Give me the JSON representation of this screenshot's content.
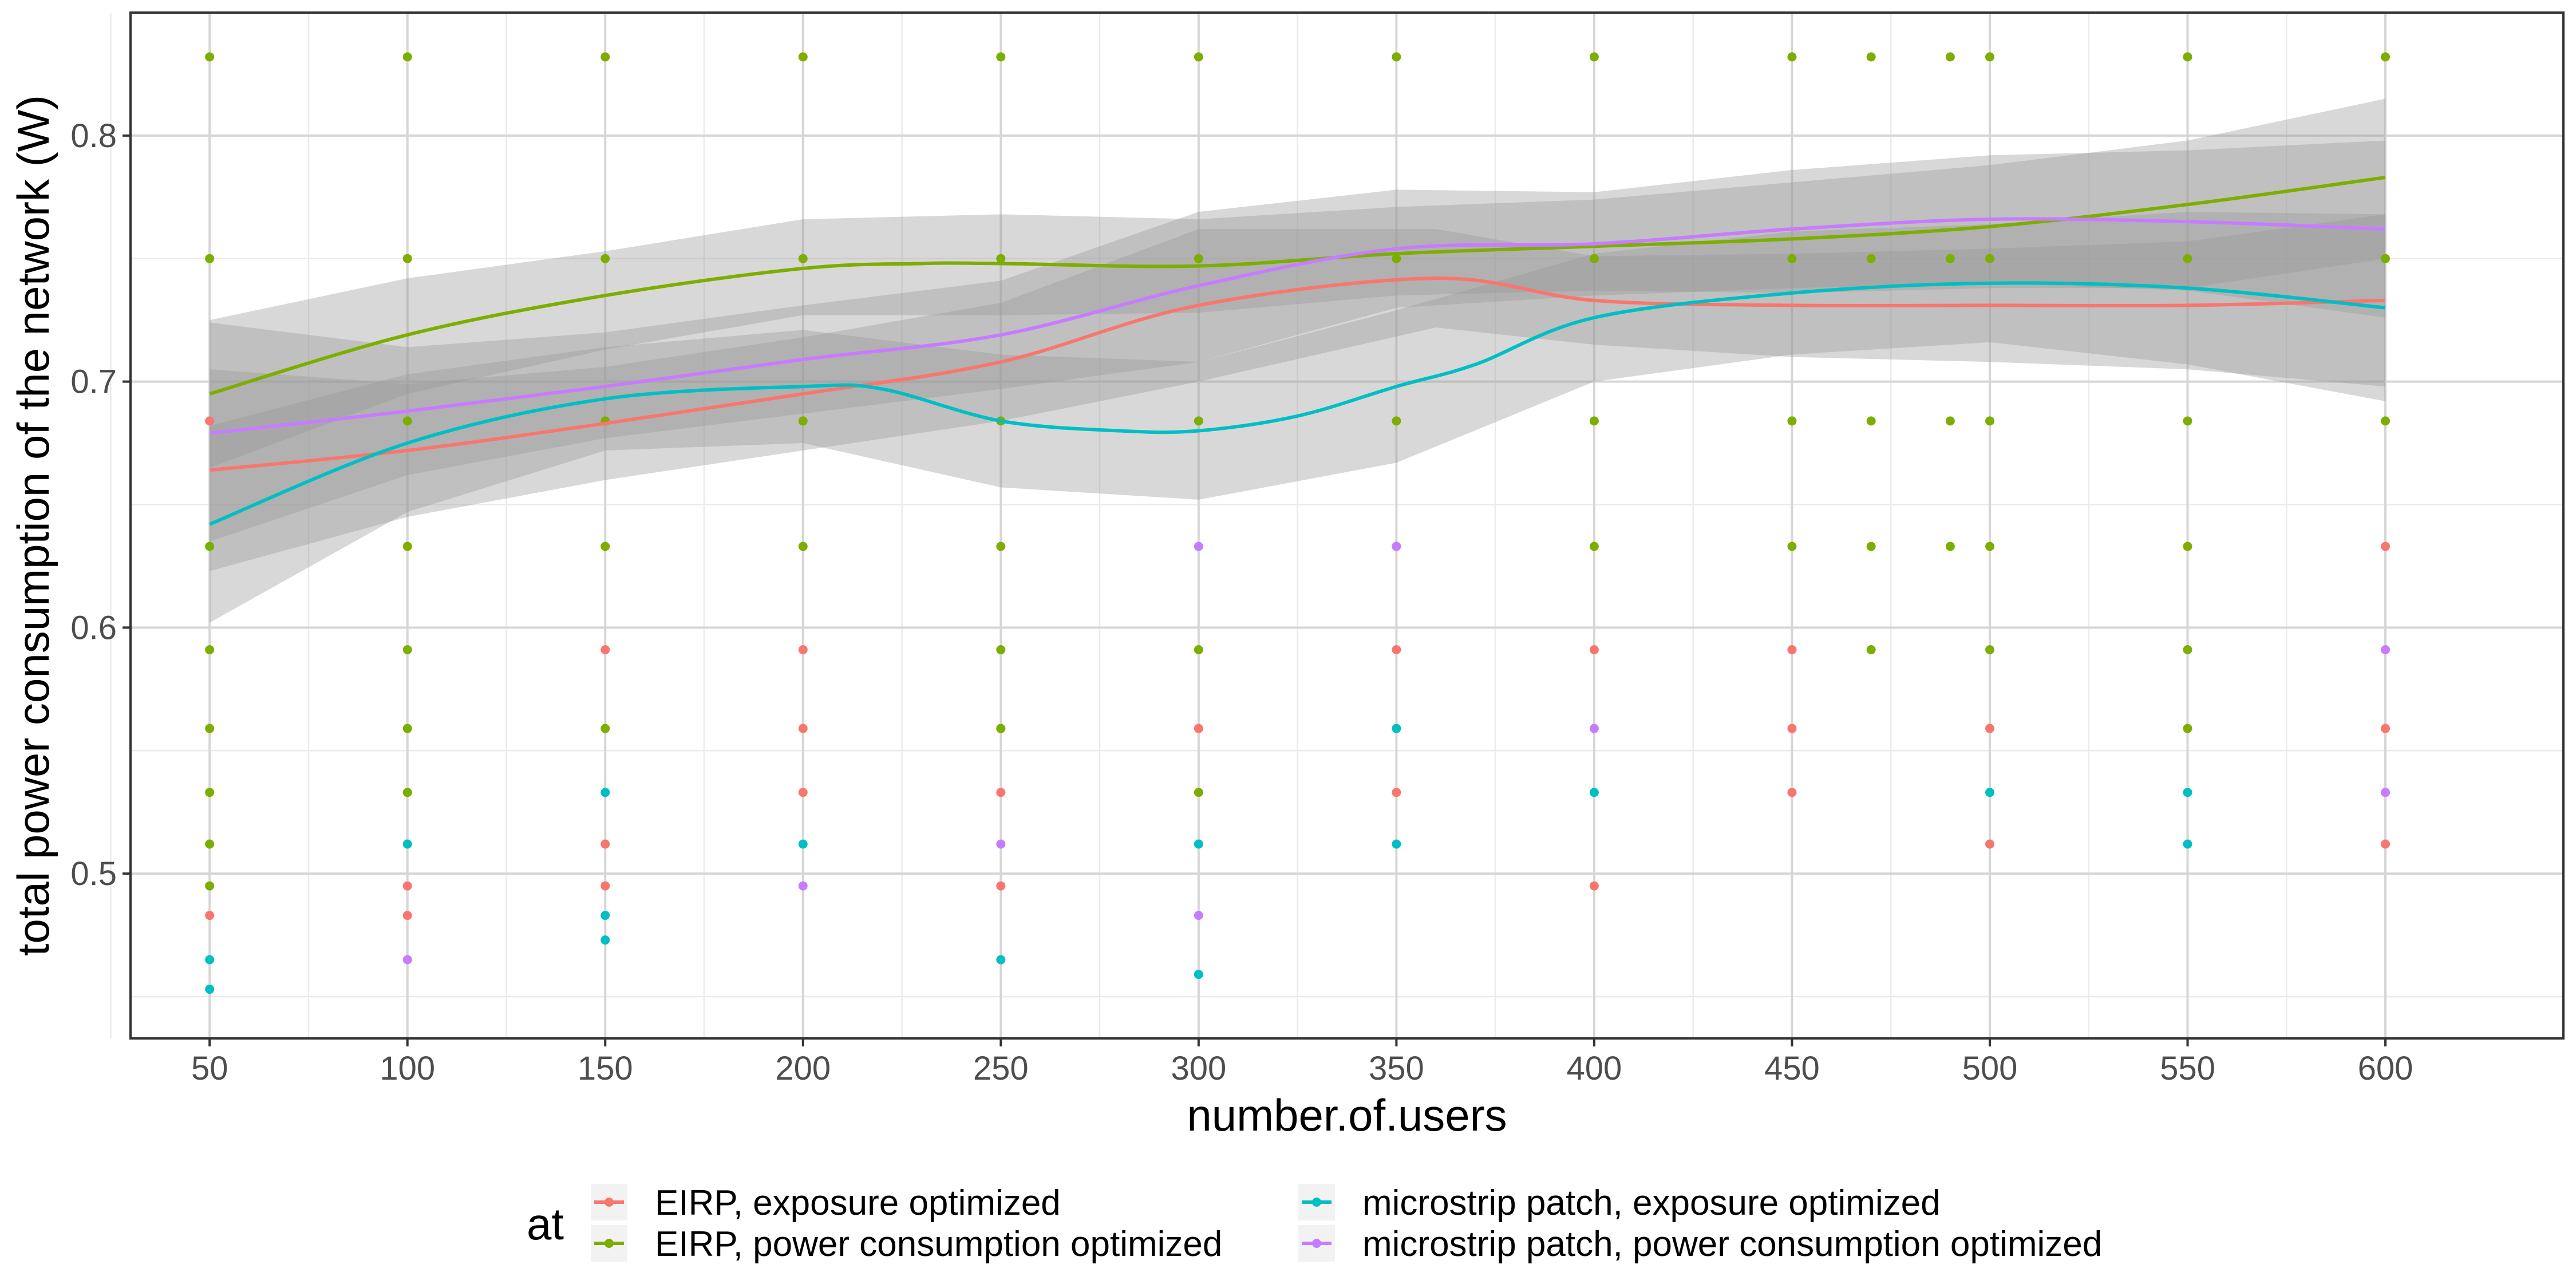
{
  "chart_data": {
    "type": "scatter",
    "xlabel": "number.of.users",
    "ylabel": "total power consumption of the network (W)",
    "xlim": [
      30,
      645
    ],
    "ylim": [
      0.433,
      0.85
    ],
    "x_ticks": [
      50,
      100,
      150,
      200,
      250,
      300,
      350,
      400,
      450,
      500,
      550,
      600
    ],
    "y_ticks": [
      0.5,
      0.6,
      0.7,
      0.8
    ],
    "grid": true,
    "legend_title": "at",
    "legend_position": "bottom",
    "series": [
      {
        "name": "EIRP, exposure optimized",
        "color": "#F8766D",
        "points": [
          [
            50,
            0.684
          ],
          [
            50,
            0.483
          ],
          [
            100,
            0.533
          ],
          [
            100,
            0.495
          ],
          [
            100,
            0.483
          ],
          [
            150,
            0.591
          ],
          [
            150,
            0.512
          ],
          [
            150,
            0.495
          ],
          [
            200,
            0.591
          ],
          [
            200,
            0.559
          ],
          [
            200,
            0.533
          ],
          [
            250,
            0.559
          ],
          [
            250,
            0.533
          ],
          [
            250,
            0.495
          ],
          [
            300,
            0.559
          ],
          [
            350,
            0.591
          ],
          [
            350,
            0.533
          ],
          [
            400,
            0.591
          ],
          [
            400,
            0.495
          ],
          [
            450,
            0.591
          ],
          [
            450,
            0.559
          ],
          [
            450,
            0.533
          ],
          [
            500,
            0.559
          ],
          [
            500,
            0.512
          ],
          [
            600,
            0.633
          ],
          [
            600,
            0.559
          ],
          [
            600,
            0.512
          ]
        ],
        "smooth": [
          [
            50,
            0.664
          ],
          [
            100,
            0.672
          ],
          [
            150,
            0.683
          ],
          [
            200,
            0.695
          ],
          [
            250,
            0.708
          ],
          [
            300,
            0.731
          ],
          [
            360,
            0.742
          ],
          [
            400,
            0.733
          ],
          [
            450,
            0.731
          ],
          [
            500,
            0.731
          ],
          [
            550,
            0.731
          ],
          [
            600,
            0.733
          ]
        ],
        "band_lower": [
          [
            50,
            0.623
          ],
          [
            100,
            0.645
          ],
          [
            150,
            0.66
          ],
          [
            200,
            0.672
          ],
          [
            250,
            0.684
          ],
          [
            300,
            0.7
          ],
          [
            360,
            0.722
          ],
          [
            400,
            0.715
          ],
          [
            450,
            0.71
          ],
          [
            500,
            0.708
          ],
          [
            550,
            0.705
          ],
          [
            600,
            0.698
          ]
        ],
        "band_upper": [
          [
            50,
            0.705
          ],
          [
            100,
            0.699
          ],
          [
            150,
            0.706
          ],
          [
            200,
            0.718
          ],
          [
            250,
            0.732
          ],
          [
            300,
            0.762
          ],
          [
            360,
            0.762
          ],
          [
            400,
            0.751
          ],
          [
            450,
            0.752
          ],
          [
            500,
            0.754
          ],
          [
            550,
            0.757
          ],
          [
            600,
            0.768
          ]
        ]
      },
      {
        "name": "EIRP, power consumption optimized",
        "color": "#7CAE00",
        "points": [
          [
            50,
            0.832
          ],
          [
            50,
            0.75
          ],
          [
            50,
            0.633
          ],
          [
            50,
            0.591
          ],
          [
            50,
            0.559
          ],
          [
            50,
            0.533
          ],
          [
            50,
            0.512
          ],
          [
            50,
            0.495
          ],
          [
            100,
            0.832
          ],
          [
            100,
            0.75
          ],
          [
            100,
            0.684
          ],
          [
            100,
            0.633
          ],
          [
            100,
            0.591
          ],
          [
            100,
            0.559
          ],
          [
            100,
            0.533
          ],
          [
            150,
            0.832
          ],
          [
            150,
            0.75
          ],
          [
            150,
            0.684
          ],
          [
            150,
            0.633
          ],
          [
            150,
            0.559
          ],
          [
            200,
            0.832
          ],
          [
            200,
            0.75
          ],
          [
            200,
            0.684
          ],
          [
            200,
            0.633
          ],
          [
            250,
            0.832
          ],
          [
            250,
            0.75
          ],
          [
            250,
            0.684
          ],
          [
            250,
            0.633
          ],
          [
            250,
            0.591
          ],
          [
            250,
            0.559
          ],
          [
            300,
            0.832
          ],
          [
            300,
            0.75
          ],
          [
            300,
            0.684
          ],
          [
            300,
            0.591
          ],
          [
            300,
            0.533
          ],
          [
            350,
            0.832
          ],
          [
            350,
            0.75
          ],
          [
            350,
            0.684
          ],
          [
            350,
            0.633
          ],
          [
            400,
            0.832
          ],
          [
            400,
            0.75
          ],
          [
            400,
            0.684
          ],
          [
            400,
            0.633
          ],
          [
            450,
            0.832
          ],
          [
            450,
            0.75
          ],
          [
            450,
            0.684
          ],
          [
            450,
            0.633
          ],
          [
            470,
            0.832
          ],
          [
            470,
            0.75
          ],
          [
            470,
            0.684
          ],
          [
            470,
            0.633
          ],
          [
            470,
            0.591
          ],
          [
            490,
            0.832
          ],
          [
            490,
            0.75
          ],
          [
            490,
            0.684
          ],
          [
            490,
            0.633
          ],
          [
            500,
            0.832
          ],
          [
            500,
            0.75
          ],
          [
            500,
            0.684
          ],
          [
            500,
            0.633
          ],
          [
            500,
            0.591
          ],
          [
            550,
            0.832
          ],
          [
            550,
            0.75
          ],
          [
            550,
            0.684
          ],
          [
            550,
            0.633
          ],
          [
            550,
            0.591
          ],
          [
            550,
            0.559
          ],
          [
            600,
            0.832
          ],
          [
            600,
            0.75
          ],
          [
            600,
            0.684
          ]
        ],
        "smooth": [
          [
            50,
            0.695
          ],
          [
            100,
            0.719
          ],
          [
            150,
            0.735
          ],
          [
            200,
            0.746
          ],
          [
            230,
            0.748
          ],
          [
            250,
            0.748
          ],
          [
            300,
            0.747
          ],
          [
            350,
            0.752
          ],
          [
            400,
            0.755
          ],
          [
            450,
            0.758
          ],
          [
            500,
            0.763
          ],
          [
            550,
            0.772
          ],
          [
            600,
            0.783
          ]
        ],
        "band_lower": [
          [
            50,
            0.665
          ],
          [
            100,
            0.695
          ],
          [
            150,
            0.713
          ],
          [
            200,
            0.727
          ],
          [
            250,
            0.727
          ],
          [
            300,
            0.728
          ],
          [
            350,
            0.735
          ],
          [
            400,
            0.737
          ],
          [
            450,
            0.736
          ],
          [
            500,
            0.738
          ],
          [
            550,
            0.738
          ],
          [
            600,
            0.75
          ]
        ],
        "band_upper": [
          [
            50,
            0.725
          ],
          [
            100,
            0.742
          ],
          [
            150,
            0.753
          ],
          [
            200,
            0.766
          ],
          [
            250,
            0.768
          ],
          [
            300,
            0.766
          ],
          [
            350,
            0.771
          ],
          [
            400,
            0.774
          ],
          [
            450,
            0.781
          ],
          [
            500,
            0.788
          ],
          [
            550,
            0.798
          ],
          [
            600,
            0.815
          ]
        ]
      },
      {
        "name": "microstrip patch, exposure optimized",
        "color": "#00BFC4",
        "points": [
          [
            50,
            0.465
          ],
          [
            50,
            0.453
          ],
          [
            100,
            0.512
          ],
          [
            150,
            0.533
          ],
          [
            150,
            0.483
          ],
          [
            150,
            0.473
          ],
          [
            200,
            0.512
          ],
          [
            250,
            0.465
          ],
          [
            300,
            0.512
          ],
          [
            300,
            0.459
          ],
          [
            350,
            0.559
          ],
          [
            350,
            0.512
          ],
          [
            400,
            0.533
          ],
          [
            500,
            0.533
          ],
          [
            550,
            0.533
          ],
          [
            550,
            0.512
          ]
        ],
        "smooth": [
          [
            50,
            0.642
          ],
          [
            100,
            0.675
          ],
          [
            150,
            0.693
          ],
          [
            200,
            0.698
          ],
          [
            220,
            0.697
          ],
          [
            250,
            0.684
          ],
          [
            280,
            0.68
          ],
          [
            300,
            0.68
          ],
          [
            325,
            0.686
          ],
          [
            350,
            0.698
          ],
          [
            370,
            0.707
          ],
          [
            400,
            0.726
          ],
          [
            450,
            0.736
          ],
          [
            500,
            0.74
          ],
          [
            550,
            0.738
          ],
          [
            600,
            0.73
          ]
        ],
        "band_lower": [
          [
            50,
            0.602
          ],
          [
            100,
            0.647
          ],
          [
            150,
            0.672
          ],
          [
            200,
            0.675
          ],
          [
            250,
            0.657
          ],
          [
            300,
            0.652
          ],
          [
            350,
            0.667
          ],
          [
            400,
            0.7
          ],
          [
            450,
            0.711
          ],
          [
            500,
            0.716
          ],
          [
            550,
            0.707
          ],
          [
            600,
            0.692
          ]
        ],
        "band_upper": [
          [
            50,
            0.682
          ],
          [
            100,
            0.703
          ],
          [
            150,
            0.714
          ],
          [
            200,
            0.721
          ],
          [
            250,
            0.711
          ],
          [
            300,
            0.708
          ],
          [
            350,
            0.729
          ],
          [
            400,
            0.752
          ],
          [
            450,
            0.761
          ],
          [
            500,
            0.764
          ],
          [
            550,
            0.769
          ],
          [
            600,
            0.768
          ]
        ]
      },
      {
        "name": "microstrip patch, power consumption optimized",
        "color": "#C77CFF",
        "points": [
          [
            100,
            0.465
          ],
          [
            200,
            0.495
          ],
          [
            250,
            0.512
          ],
          [
            300,
            0.633
          ],
          [
            300,
            0.483
          ],
          [
            350,
            0.633
          ],
          [
            400,
            0.559
          ],
          [
            600,
            0.591
          ],
          [
            600,
            0.533
          ]
        ],
        "smooth": [
          [
            50,
            0.679
          ],
          [
            100,
            0.688
          ],
          [
            150,
            0.698
          ],
          [
            200,
            0.709
          ],
          [
            250,
            0.719
          ],
          [
            300,
            0.739
          ],
          [
            350,
            0.754
          ],
          [
            400,
            0.756
          ],
          [
            450,
            0.762
          ],
          [
            500,
            0.766
          ],
          [
            550,
            0.765
          ],
          [
            600,
            0.762
          ]
        ],
        "band_lower": [
          [
            50,
            0.635
          ],
          [
            100,
            0.662
          ],
          [
            150,
            0.677
          ],
          [
            200,
            0.687
          ],
          [
            250,
            0.697
          ],
          [
            300,
            0.708
          ],
          [
            350,
            0.73
          ],
          [
            400,
            0.735
          ],
          [
            450,
            0.738
          ],
          [
            500,
            0.74
          ],
          [
            550,
            0.737
          ],
          [
            600,
            0.726
          ]
        ],
        "band_upper": [
          [
            50,
            0.724
          ],
          [
            100,
            0.714
          ],
          [
            150,
            0.72
          ],
          [
            200,
            0.731
          ],
          [
            250,
            0.741
          ],
          [
            300,
            0.769
          ],
          [
            350,
            0.778
          ],
          [
            400,
            0.777
          ],
          [
            450,
            0.786
          ],
          [
            500,
            0.792
          ],
          [
            550,
            0.794
          ],
          [
            600,
            0.798
          ]
        ]
      }
    ]
  }
}
